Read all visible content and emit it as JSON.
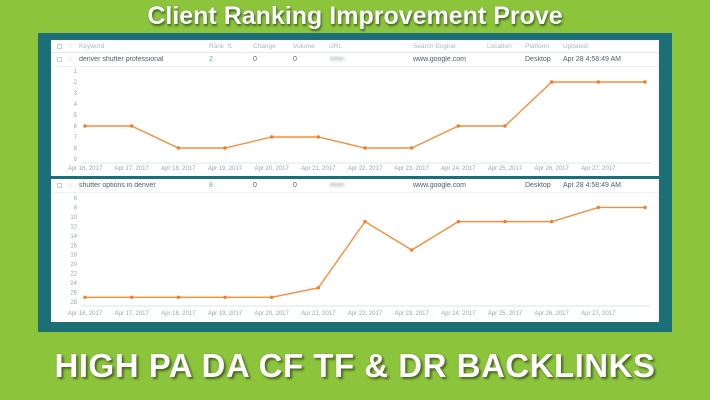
{
  "title": "Client Ranking Improvement Prove",
  "footer": "HIGH PA DA CF TF & DR BACKLINKS",
  "colors": {
    "background_green": "#8cc43c",
    "frame_teal": "#1a7076",
    "line_orange": "#f78e3d",
    "marker_orange": "#ef7d23",
    "rank_link_blue": "#57a7de",
    "axis_text_gray": "#97a6ae"
  },
  "table": {
    "headers": {
      "keyword": "Keyword",
      "rank": "Rank",
      "change": "Change",
      "volume": "Volume",
      "url": "URL",
      "search_engine": "Search Engine",
      "location": "Location",
      "platform": "Platform",
      "updated": "Updated"
    },
    "sort_icon_glyph": "⇅",
    "star_glyph": "☆",
    "rows": [
      {
        "keyword": "denver shutter professional",
        "rank": "2",
        "change": "0",
        "volume": "0",
        "url_redacted": "•••••••••••••",
        "search_engine": "www.google.com",
        "location": "",
        "platform": "Desktop",
        "updated": "Apr 28 4:58:49 AM"
      },
      {
        "keyword": "shutter options in denver",
        "rank": "8",
        "change": "0",
        "volume": "0",
        "url_redacted": "•••••••••••••",
        "search_engine": "www.google.com",
        "location": "",
        "platform": "Desktop",
        "updated": "Apr 28 4:58:49 AM"
      }
    ]
  },
  "chart_data": [
    {
      "type": "line",
      "keyword": "denver shutter professional",
      "x_labels": [
        "Apr 16, 2017",
        "Apr 17, 2017",
        "Apr 18, 2017",
        "Apr 19, 2017",
        "Apr 20, 2017",
        "Apr 21, 2017",
        "Apr 22, 2017",
        "Apr 23, 2017",
        "Apr 24, 2017",
        "Apr 25, 2017",
        "Apr 26, 2017",
        "Apr 27, 2017"
      ],
      "values": [
        6,
        6,
        8,
        8,
        7,
        7,
        8,
        8,
        6,
        6,
        2,
        2,
        2
      ],
      "last_point_unlabeled_at_right_edge": true,
      "ylim": [
        1,
        9
      ],
      "yticks": [
        1,
        2,
        3,
        4,
        5,
        6,
        7,
        8,
        9
      ],
      "y_axis_inverted_rank": true,
      "grid": false,
      "line_color": "#f78e3d",
      "marker_color": "#ef7d23"
    },
    {
      "type": "line",
      "keyword": "shutter options in denver",
      "x_labels": [
        "Apr 16, 2017",
        "Apr 17, 2017",
        "Apr 18, 2017",
        "Apr 19, 2017",
        "Apr 20, 2017",
        "Apr 21, 2017",
        "Apr 22, 2017",
        "Apr 23, 2017",
        "Apr 24, 2017",
        "Apr 25, 2017",
        "Apr 26, 2017",
        "Apr 27, 2017"
      ],
      "values": [
        27,
        27,
        27,
        27,
        27,
        25,
        11,
        17,
        11,
        11,
        11,
        8,
        8
      ],
      "last_point_unlabeled_at_right_edge": true,
      "ylim": [
        6,
        28
      ],
      "yticks": [
        6,
        8,
        10,
        12,
        14,
        16,
        18,
        20,
        22,
        24,
        26,
        28
      ],
      "y_axis_inverted_rank": true,
      "grid": false,
      "line_color": "#f78e3d",
      "marker_color": "#ef7d23"
    }
  ]
}
